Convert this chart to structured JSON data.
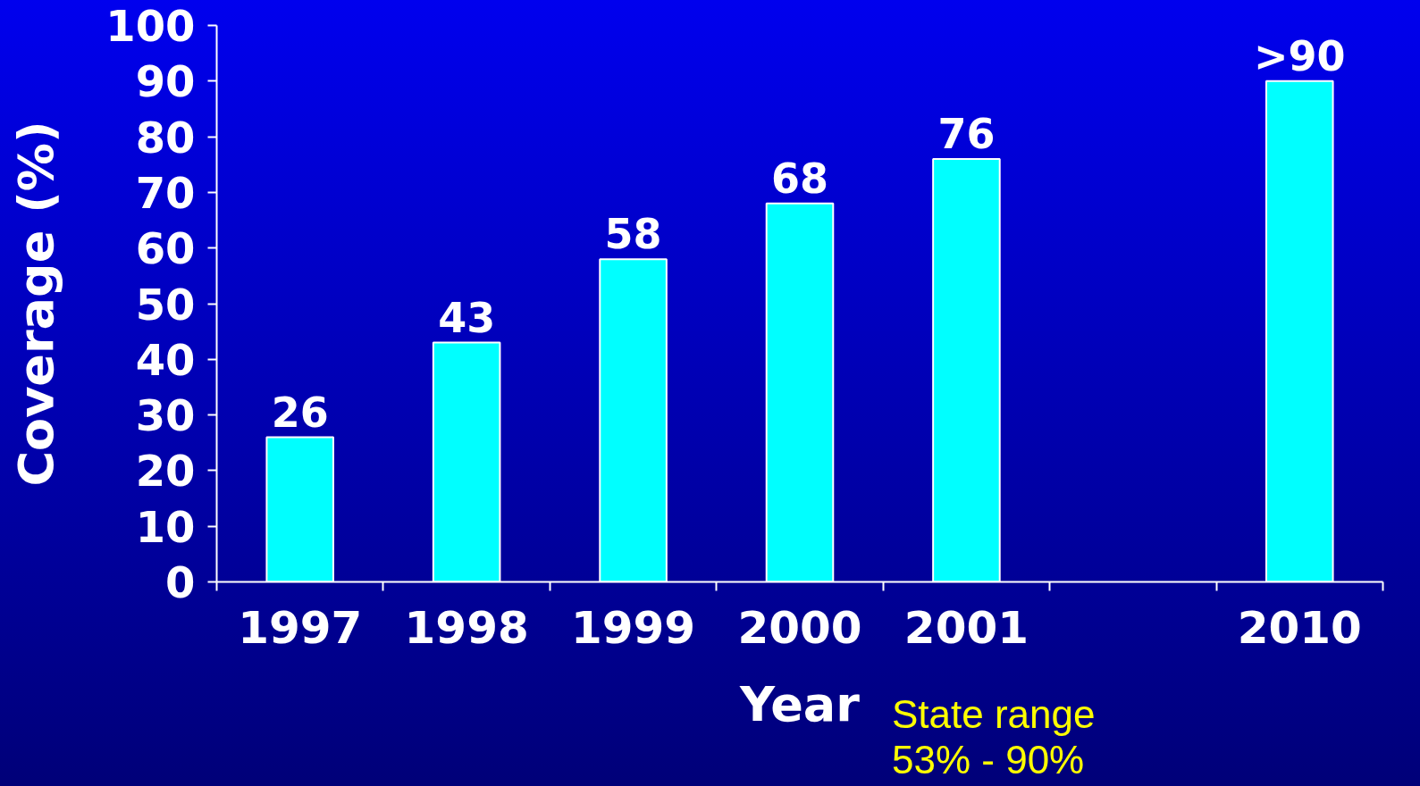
{
  "chart_data": {
    "type": "bar",
    "xlabel": "Year",
    "ylabel": "Coverage (%)",
    "categories": [
      "1997",
      "1998",
      "1999",
      "2000",
      "2001",
      null,
      "2010"
    ],
    "values": [
      26,
      43,
      58,
      68,
      76,
      null,
      90
    ],
    "color": "#00ffff",
    "value_labels": [
      "26",
      "43",
      "58",
      "68",
      "76",
      null,
      ">90"
    ],
    "ylim": [
      0,
      100
    ],
    "yticks": [
      0,
      10,
      20,
      30,
      40,
      50,
      60,
      70,
      80,
      90,
      100
    ],
    "annotations": [
      "State range\n53% - 90%"
    ]
  }
}
